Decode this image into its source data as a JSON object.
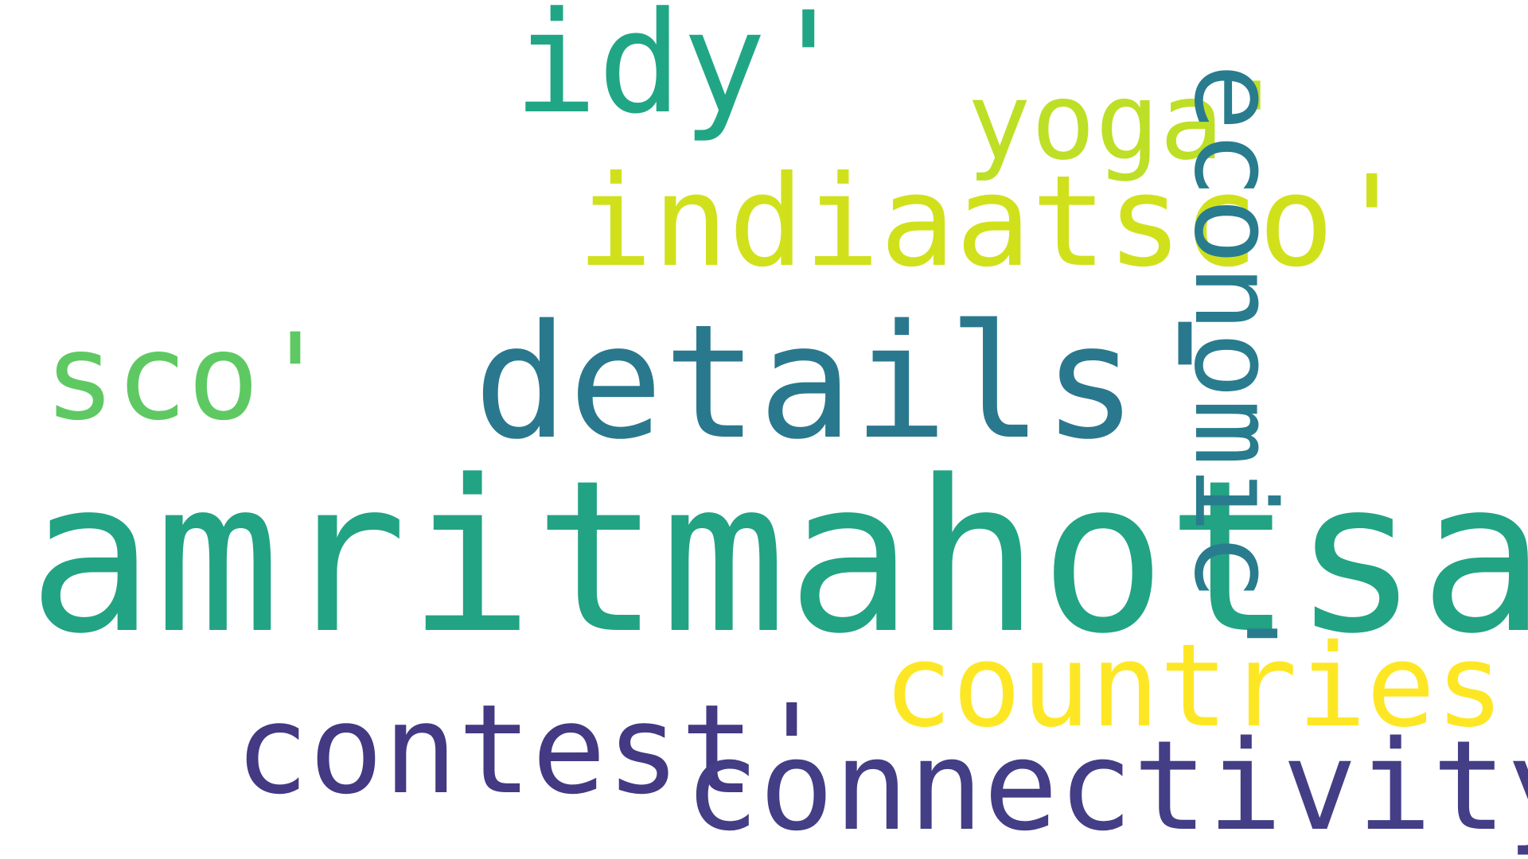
{
  "words": [
    {
      "text": "idy'",
      "color": "#21a685"
    },
    {
      "text": "yoga'",
      "color": "#bddf26"
    },
    {
      "text": "indiaatsco'",
      "color": "#d0e11c"
    },
    {
      "text": "sco'",
      "color": "#5ec962"
    },
    {
      "text": "details'",
      "color": "#2a788e"
    },
    {
      "text": "amritmahotsav'",
      "color": "#22a384"
    },
    {
      "text": "economic'",
      "color": "#287c8e"
    },
    {
      "text": "countries'",
      "color": "#fde725"
    },
    {
      "text": "contest'",
      "color": "#443983"
    },
    {
      "text": "connectivity'",
      "color": "#433e85"
    }
  ]
}
